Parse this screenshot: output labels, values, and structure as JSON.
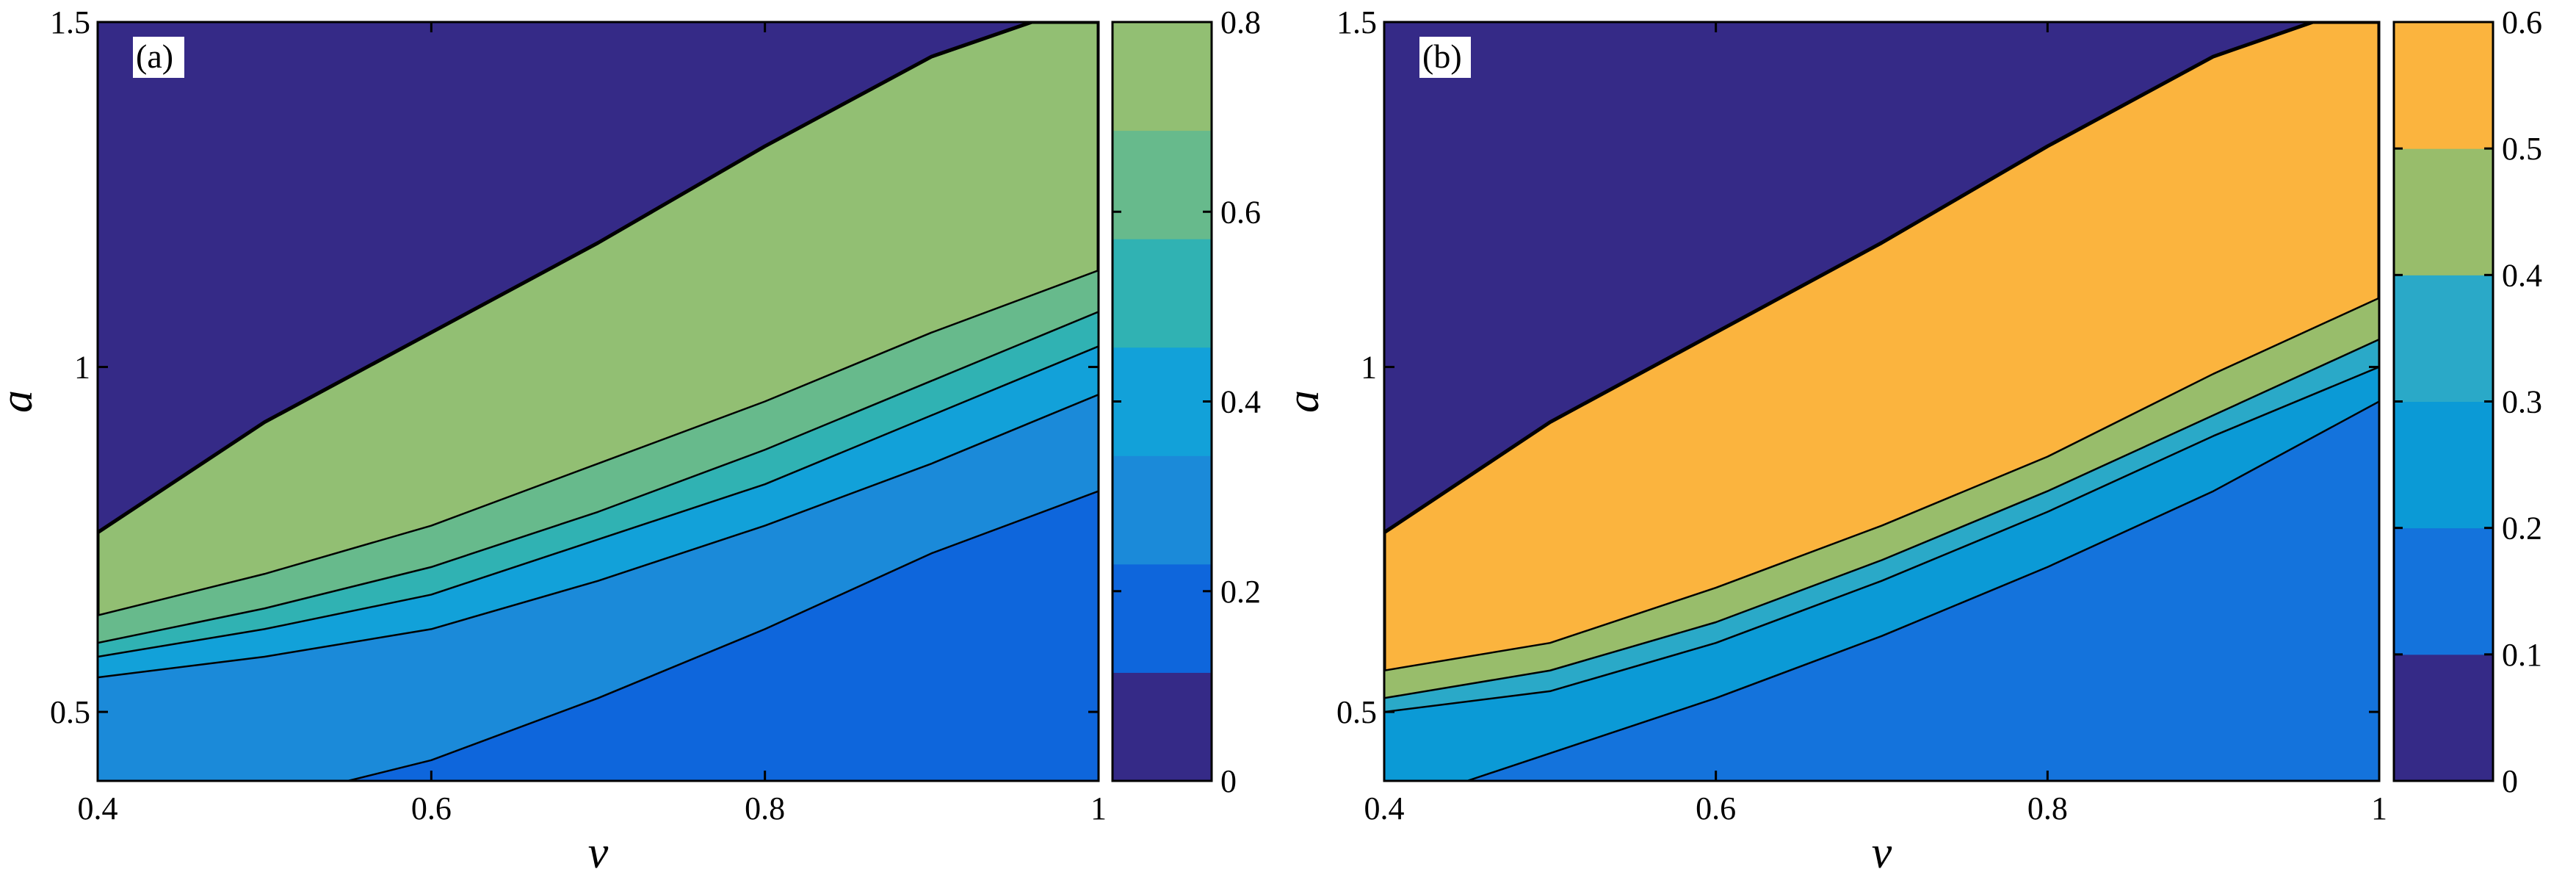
{
  "chart_data": [
    {
      "type": "contour",
      "panel_label": "(a)",
      "xlabel": "v",
      "ylabel": "a",
      "xlim": [
        0.4,
        1.0
      ],
      "ylim": [
        0.4,
        1.5
      ],
      "x_ticks": [
        "0.4",
        "0.6",
        "0.8",
        "1"
      ],
      "x_tick_values": [
        0.4,
        0.6,
        0.8,
        1.0
      ],
      "y_ticks": [
        "0.5",
        "1",
        "1.5"
      ],
      "y_tick_values": [
        0.5,
        1.0,
        1.5
      ],
      "colorbar": {
        "range": [
          0,
          0.8
        ],
        "ticks": [
          "0",
          "0.2",
          "0.4",
          "0.6",
          "0.8"
        ],
        "tick_values": [
          0,
          0.2,
          0.4,
          0.6,
          0.8
        ]
      },
      "bands": [
        {
          "value": 0.0,
          "color": "#352a87",
          "boundary": [
            [
              0.4,
              1.5
            ],
            [
              0.5,
              1.5
            ],
            [
              0.6,
              1.5
            ],
            [
              0.7,
              1.5
            ],
            [
              0.8,
              1.5
            ],
            [
              0.9,
              1.5
            ],
            [
              1.0,
              1.5
            ]
          ]
        },
        {
          "value": 0.55,
          "color": "#92bf73",
          "boundary": [
            [
              0.4,
              0.76
            ],
            [
              0.45,
              0.84
            ],
            [
              0.5,
              0.92
            ],
            [
              0.6,
              1.05
            ],
            [
              0.7,
              1.18
            ],
            [
              0.8,
              1.32
            ],
            [
              0.9,
              1.45
            ],
            [
              0.96,
              1.5
            ]
          ]
        },
        {
          "value": 0.4,
          "color": "#67ba8c",
          "boundary": [
            [
              0.4,
              0.64
            ],
            [
              0.5,
              0.7
            ],
            [
              0.6,
              0.77
            ],
            [
              0.7,
              0.86
            ],
            [
              0.8,
              0.95
            ],
            [
              0.9,
              1.05
            ],
            [
              1.0,
              1.14
            ]
          ]
        },
        {
          "value": 0.3,
          "color": "#30b2b3",
          "boundary": [
            [
              0.4,
              0.6
            ],
            [
              0.5,
              0.65
            ],
            [
              0.6,
              0.71
            ],
            [
              0.7,
              0.79
            ],
            [
              0.8,
              0.88
            ],
            [
              0.9,
              0.98
            ],
            [
              1.0,
              1.08
            ]
          ]
        },
        {
          "value": 0.2,
          "color": "#12a1d9",
          "boundary": [
            [
              0.4,
              0.58
            ],
            [
              0.5,
              0.62
            ],
            [
              0.6,
              0.67
            ],
            [
              0.7,
              0.75
            ],
            [
              0.8,
              0.83
            ],
            [
              0.9,
              0.93
            ],
            [
              1.0,
              1.03
            ]
          ]
        },
        {
          "value": 0.1,
          "color": "#1b8ad9",
          "boundary": [
            [
              0.4,
              0.55
            ],
            [
              0.5,
              0.58
            ],
            [
              0.6,
              0.62
            ],
            [
              0.7,
              0.69
            ],
            [
              0.8,
              0.77
            ],
            [
              0.9,
              0.86
            ],
            [
              1.0,
              0.96
            ]
          ]
        },
        {
          "value": 0.05,
          "color": "#0e66dc",
          "boundary": [
            [
              0.55,
              0.4
            ],
            [
              0.6,
              0.43
            ],
            [
              0.7,
              0.52
            ],
            [
              0.8,
              0.62
            ],
            [
              0.9,
              0.73
            ],
            [
              1.0,
              0.82
            ]
          ]
        }
      ]
    },
    {
      "type": "contour",
      "panel_label": "(b)",
      "xlabel": "v",
      "ylabel": "a",
      "xlim": [
        0.4,
        1.0
      ],
      "ylim": [
        0.4,
        1.5
      ],
      "x_ticks": [
        "0.4",
        "0.6",
        "0.8",
        "1"
      ],
      "x_tick_values": [
        0.4,
        0.6,
        0.8,
        1.0
      ],
      "y_ticks": [
        "0.5",
        "1",
        "1.5"
      ],
      "y_tick_values": [
        0.5,
        1.0,
        1.5
      ],
      "colorbar": {
        "range": [
          0,
          0.6
        ],
        "ticks": [
          "0",
          "0.1",
          "0.2",
          "0.3",
          "0.4",
          "0.5",
          "0.6"
        ],
        "tick_values": [
          0,
          0.1,
          0.2,
          0.3,
          0.4,
          0.5,
          0.6
        ]
      },
      "bands": [
        {
          "value": 0.0,
          "color": "#352a87",
          "boundary": [
            [
              0.4,
              1.5
            ],
            [
              0.5,
              1.5
            ],
            [
              0.6,
              1.5
            ],
            [
              0.7,
              1.5
            ],
            [
              0.8,
              1.5
            ],
            [
              0.9,
              1.5
            ],
            [
              1.0,
              1.5
            ]
          ]
        },
        {
          "value": 0.5,
          "color": "#fbb43e",
          "boundary": [
            [
              0.4,
              0.76
            ],
            [
              0.45,
              0.84
            ],
            [
              0.5,
              0.92
            ],
            [
              0.6,
              1.05
            ],
            [
              0.7,
              1.18
            ],
            [
              0.8,
              1.32
            ],
            [
              0.9,
              1.45
            ],
            [
              0.96,
              1.5
            ]
          ]
        },
        {
          "value": 0.4,
          "color": "#98bd6b",
          "boundary": [
            [
              0.4,
              0.56
            ],
            [
              0.5,
              0.6
            ],
            [
              0.6,
              0.68
            ],
            [
              0.7,
              0.77
            ],
            [
              0.8,
              0.87
            ],
            [
              0.9,
              0.99
            ],
            [
              1.0,
              1.1
            ]
          ]
        },
        {
          "value": 0.3,
          "color": "#2aa9c8",
          "boundary": [
            [
              0.4,
              0.52
            ],
            [
              0.5,
              0.56
            ],
            [
              0.6,
              0.63
            ],
            [
              0.7,
              0.72
            ],
            [
              0.8,
              0.82
            ],
            [
              0.9,
              0.93
            ],
            [
              1.0,
              1.04
            ]
          ]
        },
        {
          "value": 0.2,
          "color": "#0b9ad6",
          "boundary": [
            [
              0.4,
              0.5
            ],
            [
              0.5,
              0.53
            ],
            [
              0.6,
              0.6
            ],
            [
              0.7,
              0.69
            ],
            [
              0.8,
              0.79
            ],
            [
              0.9,
              0.9
            ],
            [
              1.0,
              1.0
            ]
          ]
        },
        {
          "value": 0.1,
          "color": "#1473dc",
          "boundary": [
            [
              0.45,
              0.4
            ],
            [
              0.5,
              0.44
            ],
            [
              0.6,
              0.52
            ],
            [
              0.7,
              0.61
            ],
            [
              0.8,
              0.71
            ],
            [
              0.9,
              0.82
            ],
            [
              1.0,
              0.95
            ]
          ]
        }
      ]
    }
  ],
  "page": {
    "background": "#ffffff"
  }
}
